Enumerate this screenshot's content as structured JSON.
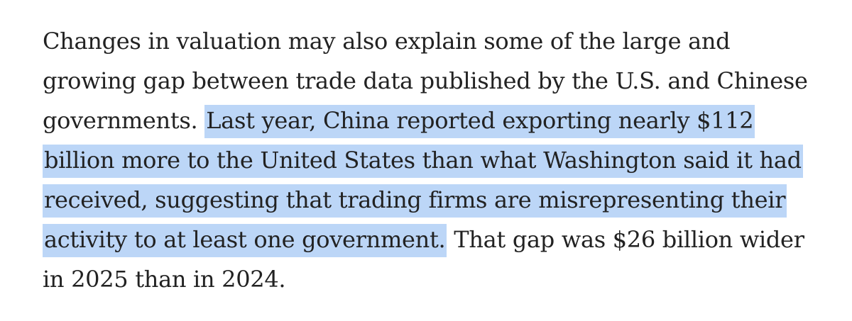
{
  "paragraph": {
    "line_1": "Changes in valuation may also explain some of the large and",
    "line_2": "growing gap between trade data published by the U.S. and Chinese",
    "line_3_plain": "governments. ",
    "line_3_highlight": "Last year, China reported exporting nearly $112",
    "line_4_highlight": "billion more to the United States than what Washington said it had",
    "line_5_highlight": "received, suggesting that trading firms are misrepresenting their",
    "line_6_highlight": "activity to at least one government.",
    "line_6_plain": " That gap was $26 billion wider",
    "line_7": "in 2025 than in 2024."
  },
  "colors": {
    "text": "#222222",
    "highlight": "#bcd6f7",
    "background": "#ffffff"
  }
}
